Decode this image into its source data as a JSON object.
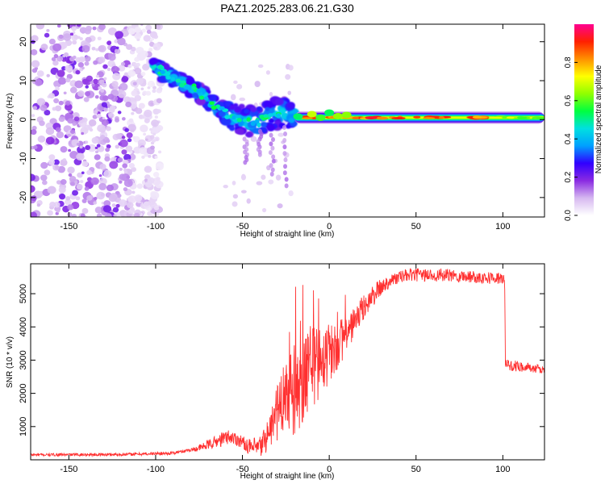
{
  "title": "PAZ1.2025.283.06.21.G30",
  "chart_data": [
    {
      "type": "heatmap",
      "title": "PAZ1.2025.283.06.21.G30",
      "xlabel": "Height of straight line (km)",
      "ylabel": "Frequency (Hz)",
      "xlim": [
        -172,
        124
      ],
      "ylim": [
        -25,
        24.5
      ],
      "xticks": [
        -150,
        -100,
        -50,
        0,
        50,
        100
      ],
      "yticks": [
        -20,
        -10,
        0,
        10,
        20
      ],
      "colorbar": {
        "label": "Normalized spectral amplitude",
        "range": [
          0,
          1
        ],
        "ticks": [
          0.0,
          0.2,
          0.4,
          0.6,
          0.8
        ],
        "tick_labels": [
          "0.0",
          "0.2",
          "0.4",
          "0.6",
          "0.8"
        ],
        "colors": [
          "#ffffff",
          "#d6b8f0",
          "#8a2be2",
          "#3000ff",
          "#00a0ff",
          "#00e0e0",
          "#00ff40",
          "#90ff00",
          "#ffff00",
          "#ff9000",
          "#ff2000",
          "#ff0090"
        ]
      },
      "features": {
        "noise_region_x": [
          -172,
          -105
        ],
        "descending_track": [
          {
            "x": -102,
            "f": 14
          },
          {
            "x": -95,
            "f": 12
          },
          {
            "x": -88,
            "f": 10
          },
          {
            "x": -80,
            "f": 8.5
          },
          {
            "x": -72,
            "f": 6
          },
          {
            "x": -65,
            "f": 3
          },
          {
            "x": -58,
            "f": 1
          },
          {
            "x": -50,
            "f": 0
          },
          {
            "x": -42,
            "f": -1
          },
          {
            "x": -35,
            "f": 1
          },
          {
            "x": -28,
            "f": 2
          },
          {
            "x": -20,
            "f": 1
          }
        ],
        "tone_line": {
          "x_range": [
            -20,
            124
          ],
          "frequency": 0.5
        }
      }
    },
    {
      "type": "line",
      "title": "",
      "xlabel": "Height of straight line (km)",
      "ylabel": "SNR (10 * v/v)",
      "xlim": [
        -172,
        124
      ],
      "ylim": [
        0,
        5900
      ],
      "xticks": [
        -150,
        -100,
        -50,
        0,
        50,
        100
      ],
      "yticks": [
        1000,
        2000,
        3000,
        4000,
        5000
      ],
      "color": "#ff3030",
      "trend": [
        {
          "x": -172,
          "y": 150
        },
        {
          "x": -120,
          "y": 160
        },
        {
          "x": -90,
          "y": 200
        },
        {
          "x": -75,
          "y": 350
        },
        {
          "x": -65,
          "y": 550
        },
        {
          "x": -58,
          "y": 700
        },
        {
          "x": -52,
          "y": 600
        },
        {
          "x": -45,
          "y": 350
        },
        {
          "x": -40,
          "y": 350
        },
        {
          "x": -35,
          "y": 800
        },
        {
          "x": -30,
          "y": 1400
        },
        {
          "x": -25,
          "y": 1900
        },
        {
          "x": -20,
          "y": 2000
        },
        {
          "x": -15,
          "y": 2300
        },
        {
          "x": -10,
          "y": 2800
        },
        {
          "x": 0,
          "y": 3200
        },
        {
          "x": 10,
          "y": 3800
        },
        {
          "x": 20,
          "y": 4600
        },
        {
          "x": 28,
          "y": 5100
        },
        {
          "x": 35,
          "y": 5400
        },
        {
          "x": 45,
          "y": 5560
        },
        {
          "x": 60,
          "y": 5560
        },
        {
          "x": 80,
          "y": 5520
        },
        {
          "x": 101,
          "y": 5450
        },
        {
          "x": 101.5,
          "y": 2850
        },
        {
          "x": 112,
          "y": 2800
        },
        {
          "x": 124,
          "y": 2700
        }
      ],
      "noise_amplitude": [
        {
          "x": -172,
          "a": 40
        },
        {
          "x": -80,
          "a": 50
        },
        {
          "x": -62,
          "a": 220
        },
        {
          "x": -48,
          "a": 200
        },
        {
          "x": -35,
          "a": 500
        },
        {
          "x": -20,
          "a": 1500
        },
        {
          "x": -10,
          "a": 1300
        },
        {
          "x": 0,
          "a": 900
        },
        {
          "x": 15,
          "a": 450
        },
        {
          "x": 35,
          "a": 200
        },
        {
          "x": 101,
          "a": 180
        },
        {
          "x": 124,
          "a": 120
        }
      ]
    }
  ]
}
